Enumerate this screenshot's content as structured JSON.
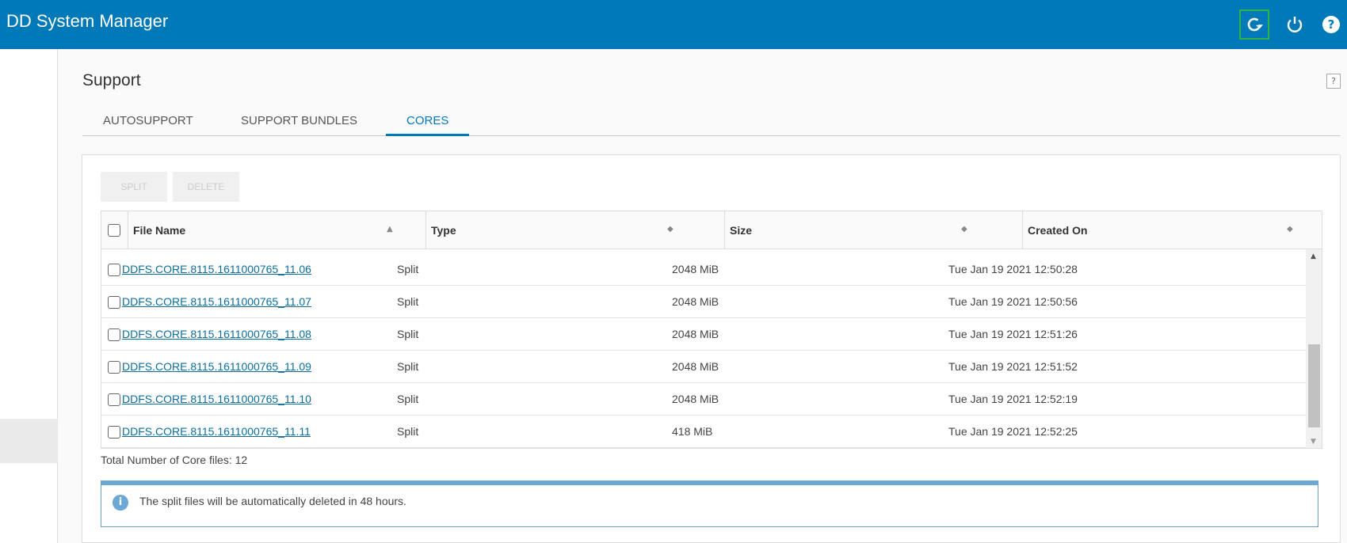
{
  "header": {
    "title": "DD System Manager",
    "icons": [
      "refresh-icon",
      "power-icon",
      "help-icon"
    ]
  },
  "page": {
    "title": "Support",
    "help": "?"
  },
  "tabs": [
    {
      "label": "AUTOSUPPORT"
    },
    {
      "label": "SUPPORT BUNDLES"
    },
    {
      "label": "CORES",
      "active": true
    }
  ],
  "toolbar": {
    "split": "SPLIT",
    "delete": "DELETE"
  },
  "table": {
    "columns": [
      "File Name",
      "Type",
      "Size",
      "Created On"
    ],
    "rows": [
      {
        "name": "DDFS.CORE.8115.1611000765_11.06",
        "type": "Split",
        "size": "2048 MiB",
        "created": "Tue Jan 19 2021 12:50:28"
      },
      {
        "name": "DDFS.CORE.8115.1611000765_11.07",
        "type": "Split",
        "size": "2048 MiB",
        "created": "Tue Jan 19 2021 12:50:56"
      },
      {
        "name": "DDFS.CORE.8115.1611000765_11.08",
        "type": "Split",
        "size": "2048 MiB",
        "created": "Tue Jan 19 2021 12:51:26"
      },
      {
        "name": "DDFS.CORE.8115.1611000765_11.09",
        "type": "Split",
        "size": "2048 MiB",
        "created": "Tue Jan 19 2021 12:51:52"
      },
      {
        "name": "DDFS.CORE.8115.1611000765_11.10",
        "type": "Split",
        "size": "2048 MiB",
        "created": "Tue Jan 19 2021 12:52:19"
      },
      {
        "name": "DDFS.CORE.8115.1611000765_11.11",
        "type": "Split",
        "size": "418 MiB",
        "created": "Tue Jan 19 2021 12:52:25"
      }
    ]
  },
  "total": "Total Number of Core files: 12",
  "info": {
    "text": "The split files will be automatically deleted in 48 hours."
  },
  "colors": {
    "header": "#0079b8",
    "link": "#0b6e9e",
    "info": "#6ba8d6"
  }
}
